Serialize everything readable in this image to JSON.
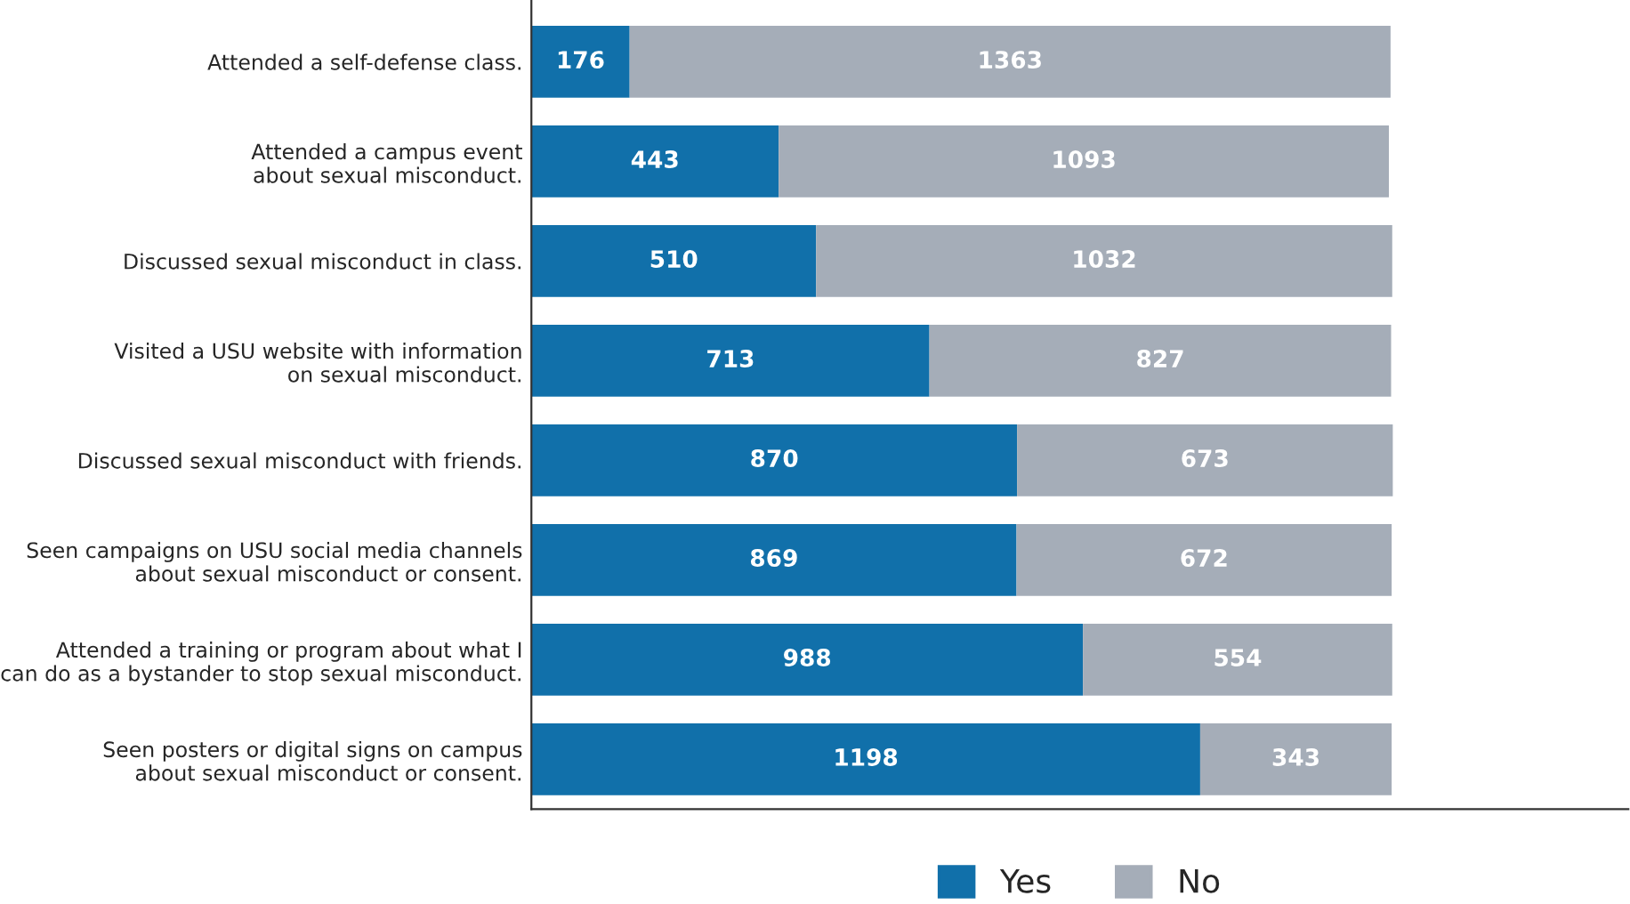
{
  "chart_data": {
    "type": "bar",
    "orientation": "horizontal",
    "stacked": true,
    "categories": [
      "Attended a self-defense class.",
      "Attended a campus event\nabout sexual misconduct.",
      "Discussed sexual misconduct in class.",
      "Visited a USU website with information\non sexual misconduct.",
      "Discussed sexual misconduct with friends.",
      "Seen campaigns on USU social media channels\nabout sexual misconduct or consent.",
      "Attended a training or program about what I\ncan do as a bystander to stop sexual misconduct.",
      "Seen posters or digital signs on campus\nabout sexual misconduct or consent."
    ],
    "series": [
      {
        "name": "Yes",
        "color": "#1170aa",
        "values": [
          176,
          443,
          510,
          713,
          870,
          869,
          988,
          1198
        ]
      },
      {
        "name": "No",
        "color": "#a5adb8",
        "values": [
          1363,
          1093,
          1032,
          827,
          673,
          672,
          554,
          343
        ]
      }
    ],
    "xlim": [
      0,
      1965
    ],
    "tick_labels": "y",
    "data_labels": true,
    "grid": false,
    "legend": "bottom"
  }
}
